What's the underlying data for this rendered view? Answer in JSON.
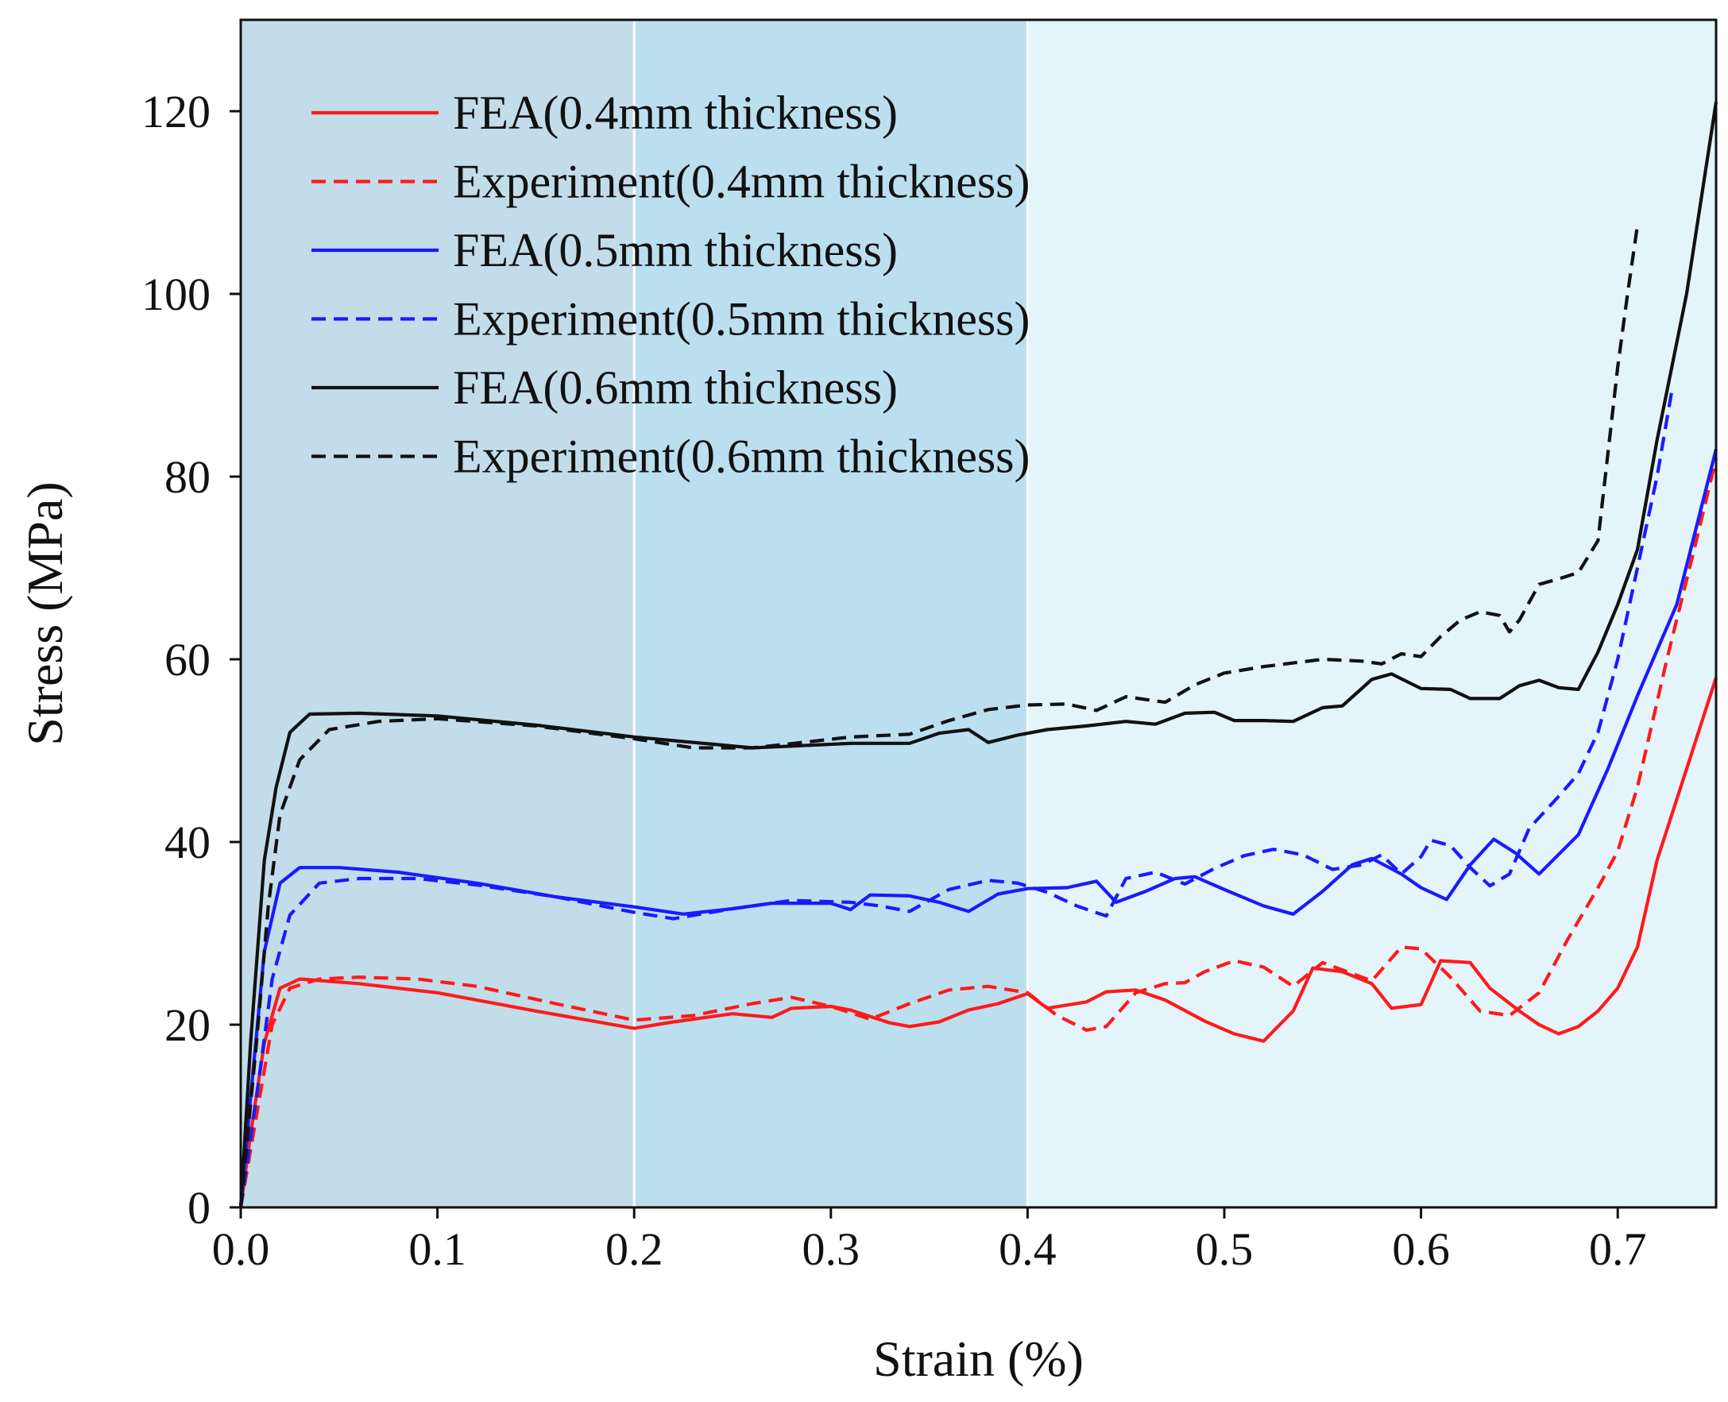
{
  "chart_data": {
    "type": "line",
    "title": "",
    "xlabel": "Strain (%)",
    "ylabel": "Stress (MPa)",
    "xlim": [
      0,
      0.75
    ],
    "ylim": [
      0,
      130
    ],
    "xticks": [
      "0.0",
      "0.1",
      "0.2",
      "0.3",
      "0.4",
      "0.5",
      "0.6",
      "0.7"
    ],
    "yticks": [
      "0",
      "20",
      "40",
      "60",
      "80",
      "100",
      "120"
    ],
    "regions": [
      {
        "from": 0.0,
        "to": 0.2,
        "color": "#c2dcea"
      },
      {
        "from": 0.2,
        "to": 0.4,
        "color": "#bcdff0"
      },
      {
        "from": 0.4,
        "to": 0.75,
        "color": "#e3f4fb"
      }
    ],
    "legend_position": "top-left",
    "series": [
      {
        "name": "FEA(0.4mm thickness)",
        "color": "#ff1a1a",
        "dash": "solid",
        "points": [
          [
            0,
            0
          ],
          [
            0.005,
            8
          ],
          [
            0.012,
            18
          ],
          [
            0.02,
            24
          ],
          [
            0.03,
            25
          ],
          [
            0.06,
            24.5
          ],
          [
            0.1,
            23.5
          ],
          [
            0.15,
            21.5
          ],
          [
            0.2,
            19.6
          ],
          [
            0.22,
            20.3
          ],
          [
            0.25,
            21.2
          ],
          [
            0.27,
            20.8
          ],
          [
            0.28,
            21.8
          ],
          [
            0.3,
            22
          ],
          [
            0.31,
            21.6
          ],
          [
            0.33,
            20.2
          ],
          [
            0.34,
            19.8
          ],
          [
            0.355,
            20.3
          ],
          [
            0.37,
            21.6
          ],
          [
            0.385,
            22.3
          ],
          [
            0.4,
            23.4
          ],
          [
            0.41,
            21.8
          ],
          [
            0.43,
            22.5
          ],
          [
            0.44,
            23.6
          ],
          [
            0.455,
            23.8
          ],
          [
            0.47,
            22.7
          ],
          [
            0.49,
            20.4
          ],
          [
            0.505,
            19
          ],
          [
            0.52,
            18.2
          ],
          [
            0.535,
            21.5
          ],
          [
            0.545,
            26.2
          ],
          [
            0.56,
            25.8
          ],
          [
            0.575,
            24.5
          ],
          [
            0.585,
            21.8
          ],
          [
            0.6,
            22.2
          ],
          [
            0.61,
            27
          ],
          [
            0.625,
            26.8
          ],
          [
            0.635,
            24
          ],
          [
            0.65,
            21.5
          ],
          [
            0.66,
            20
          ],
          [
            0.67,
            19
          ],
          [
            0.68,
            19.8
          ],
          [
            0.69,
            21.5
          ],
          [
            0.7,
            24
          ],
          [
            0.71,
            28.5
          ],
          [
            0.72,
            38
          ],
          [
            0.735,
            48
          ],
          [
            0.75,
            58
          ]
        ]
      },
      {
        "name": "Experiment(0.4mm thickness)",
        "color": "#ff1a1a",
        "dash": "dashed",
        "points": [
          [
            0,
            0
          ],
          [
            0.008,
            10
          ],
          [
            0.016,
            20
          ],
          [
            0.025,
            24
          ],
          [
            0.04,
            25
          ],
          [
            0.06,
            25.2
          ],
          [
            0.09,
            25
          ],
          [
            0.12,
            24.2
          ],
          [
            0.16,
            22.3
          ],
          [
            0.2,
            20.5
          ],
          [
            0.23,
            21
          ],
          [
            0.26,
            22.3
          ],
          [
            0.28,
            23
          ],
          [
            0.3,
            22
          ],
          [
            0.32,
            20.6
          ],
          [
            0.34,
            22.3
          ],
          [
            0.36,
            23.8
          ],
          [
            0.38,
            24.2
          ],
          [
            0.4,
            23.5
          ],
          [
            0.415,
            21
          ],
          [
            0.43,
            19.4
          ],
          [
            0.44,
            19.8
          ],
          [
            0.455,
            23.5
          ],
          [
            0.47,
            24.5
          ],
          [
            0.48,
            24.6
          ],
          [
            0.49,
            25.8
          ],
          [
            0.505,
            27
          ],
          [
            0.52,
            26.3
          ],
          [
            0.535,
            24.2
          ],
          [
            0.55,
            26.8
          ],
          [
            0.56,
            26
          ],
          [
            0.575,
            24.8
          ],
          [
            0.59,
            28.5
          ],
          [
            0.6,
            28.3
          ],
          [
            0.615,
            25.2
          ],
          [
            0.63,
            21.5
          ],
          [
            0.645,
            21
          ],
          [
            0.66,
            23.5
          ],
          [
            0.675,
            29.5
          ],
          [
            0.69,
            35
          ],
          [
            0.7,
            39
          ],
          [
            0.71,
            46
          ],
          [
            0.725,
            60
          ],
          [
            0.74,
            73
          ],
          [
            0.75,
            82
          ]
        ]
      },
      {
        "name": "FEA(0.5mm thickness)",
        "color": "#1a1aff",
        "dash": "solid",
        "points": [
          [
            0,
            0
          ],
          [
            0.005,
            12
          ],
          [
            0.012,
            28
          ],
          [
            0.02,
            35.5
          ],
          [
            0.03,
            37.2
          ],
          [
            0.05,
            37.2
          ],
          [
            0.08,
            36.7
          ],
          [
            0.12,
            35.5
          ],
          [
            0.16,
            34
          ],
          [
            0.2,
            32.9
          ],
          [
            0.225,
            32.1
          ],
          [
            0.25,
            32.7
          ],
          [
            0.27,
            33.3
          ],
          [
            0.3,
            33.3
          ],
          [
            0.31,
            32.6
          ],
          [
            0.32,
            34.2
          ],
          [
            0.34,
            34.1
          ],
          [
            0.355,
            33.4
          ],
          [
            0.37,
            32.4
          ],
          [
            0.385,
            34.3
          ],
          [
            0.4,
            34.9
          ],
          [
            0.42,
            35
          ],
          [
            0.435,
            35.7
          ],
          [
            0.445,
            33.4
          ],
          [
            0.46,
            34.6
          ],
          [
            0.475,
            36
          ],
          [
            0.485,
            36.2
          ],
          [
            0.5,
            34.8
          ],
          [
            0.52,
            33
          ],
          [
            0.535,
            32.1
          ],
          [
            0.55,
            34.6
          ],
          [
            0.565,
            37.5
          ],
          [
            0.575,
            38.2
          ],
          [
            0.59,
            36.5
          ],
          [
            0.6,
            35
          ],
          [
            0.613,
            33.7
          ],
          [
            0.625,
            37.5
          ],
          [
            0.637,
            40.3
          ],
          [
            0.648,
            38.8
          ],
          [
            0.66,
            36.5
          ],
          [
            0.68,
            40.8
          ],
          [
            0.695,
            48
          ],
          [
            0.71,
            56
          ],
          [
            0.73,
            66
          ],
          [
            0.75,
            83
          ]
        ]
      },
      {
        "name": "Experiment(0.5mm thickness)",
        "color": "#1a1aff",
        "dash": "dashed",
        "points": [
          [
            0,
            0
          ],
          [
            0.008,
            12
          ],
          [
            0.016,
            25
          ],
          [
            0.025,
            32
          ],
          [
            0.04,
            35.5
          ],
          [
            0.06,
            36
          ],
          [
            0.09,
            36
          ],
          [
            0.12,
            35.3
          ],
          [
            0.16,
            34
          ],
          [
            0.2,
            32.3
          ],
          [
            0.22,
            31.6
          ],
          [
            0.25,
            32.7
          ],
          [
            0.28,
            33.6
          ],
          [
            0.31,
            33.4
          ],
          [
            0.325,
            33
          ],
          [
            0.34,
            32.4
          ],
          [
            0.36,
            34.8
          ],
          [
            0.38,
            35.8
          ],
          [
            0.395,
            35.5
          ],
          [
            0.41,
            34.5
          ],
          [
            0.425,
            33
          ],
          [
            0.44,
            31.9
          ],
          [
            0.45,
            36
          ],
          [
            0.465,
            36.7
          ],
          [
            0.48,
            35.4
          ],
          [
            0.495,
            37.1
          ],
          [
            0.51,
            38.5
          ],
          [
            0.525,
            39.2
          ],
          [
            0.54,
            38.6
          ],
          [
            0.555,
            37
          ],
          [
            0.57,
            37.5
          ],
          [
            0.58,
            38.6
          ],
          [
            0.59,
            36.5
          ],
          [
            0.6,
            38.4
          ],
          [
            0.605,
            40.2
          ],
          [
            0.615,
            39.6
          ],
          [
            0.625,
            37.2
          ],
          [
            0.635,
            35.2
          ],
          [
            0.645,
            36.5
          ],
          [
            0.655,
            41.5
          ],
          [
            0.67,
            45
          ],
          [
            0.68,
            47.5
          ],
          [
            0.69,
            52
          ],
          [
            0.7,
            60
          ],
          [
            0.71,
            70
          ],
          [
            0.72,
            80
          ],
          [
            0.728,
            90
          ]
        ]
      },
      {
        "name": "FEA(0.6mm thickness)",
        "color": "#111111",
        "dash": "solid",
        "points": [
          [
            0,
            0
          ],
          [
            0.005,
            18
          ],
          [
            0.012,
            38
          ],
          [
            0.018,
            46
          ],
          [
            0.025,
            52
          ],
          [
            0.035,
            54
          ],
          [
            0.06,
            54.1
          ],
          [
            0.1,
            53.8
          ],
          [
            0.15,
            52.8
          ],
          [
            0.2,
            51.5
          ],
          [
            0.24,
            50.7
          ],
          [
            0.26,
            50.3
          ],
          [
            0.28,
            50.5
          ],
          [
            0.31,
            50.8
          ],
          [
            0.34,
            50.8
          ],
          [
            0.355,
            51.9
          ],
          [
            0.37,
            52.3
          ],
          [
            0.38,
            50.9
          ],
          [
            0.395,
            51.7
          ],
          [
            0.41,
            52.3
          ],
          [
            0.43,
            52.7
          ],
          [
            0.45,
            53.2
          ],
          [
            0.465,
            52.9
          ],
          [
            0.48,
            54.1
          ],
          [
            0.495,
            54.2
          ],
          [
            0.505,
            53.3
          ],
          [
            0.52,
            53.3
          ],
          [
            0.535,
            53.2
          ],
          [
            0.55,
            54.7
          ],
          [
            0.56,
            54.9
          ],
          [
            0.575,
            57.8
          ],
          [
            0.585,
            58.4
          ],
          [
            0.6,
            56.8
          ],
          [
            0.615,
            56.7
          ],
          [
            0.625,
            55.7
          ],
          [
            0.64,
            55.7
          ],
          [
            0.65,
            57.1
          ],
          [
            0.66,
            57.7
          ],
          [
            0.67,
            56.9
          ],
          [
            0.68,
            56.7
          ],
          [
            0.69,
            60.8
          ],
          [
            0.7,
            66
          ],
          [
            0.71,
            72
          ],
          [
            0.72,
            84
          ],
          [
            0.735,
            100
          ],
          [
            0.75,
            121
          ]
        ]
      },
      {
        "name": "Experiment(0.6mm thickness)",
        "color": "#111111",
        "dash": "dashed",
        "points": [
          [
            0,
            0
          ],
          [
            0.008,
            18
          ],
          [
            0.014,
            33
          ],
          [
            0.02,
            43
          ],
          [
            0.03,
            49
          ],
          [
            0.045,
            52.3
          ],
          [
            0.07,
            53.2
          ],
          [
            0.1,
            53.5
          ],
          [
            0.15,
            52.7
          ],
          [
            0.2,
            51.3
          ],
          [
            0.23,
            50.3
          ],
          [
            0.26,
            50.3
          ],
          [
            0.29,
            51
          ],
          [
            0.31,
            51.5
          ],
          [
            0.34,
            51.8
          ],
          [
            0.36,
            53.3
          ],
          [
            0.38,
            54.5
          ],
          [
            0.4,
            55
          ],
          [
            0.42,
            55.1
          ],
          [
            0.435,
            54.4
          ],
          [
            0.45,
            55.9
          ],
          [
            0.47,
            55.3
          ],
          [
            0.485,
            57.2
          ],
          [
            0.5,
            58.5
          ],
          [
            0.52,
            59.2
          ],
          [
            0.55,
            60
          ],
          [
            0.57,
            59.8
          ],
          [
            0.58,
            59.5
          ],
          [
            0.59,
            60.6
          ],
          [
            0.6,
            60.3
          ],
          [
            0.61,
            62.5
          ],
          [
            0.62,
            64.3
          ],
          [
            0.63,
            65.2
          ],
          [
            0.64,
            64.8
          ],
          [
            0.645,
            63
          ],
          [
            0.65,
            64.3
          ],
          [
            0.66,
            68.2
          ],
          [
            0.67,
            68.8
          ],
          [
            0.68,
            69.5
          ],
          [
            0.69,
            73
          ],
          [
            0.7,
            92
          ],
          [
            0.705,
            100
          ],
          [
            0.71,
            107.5
          ]
        ]
      }
    ]
  }
}
